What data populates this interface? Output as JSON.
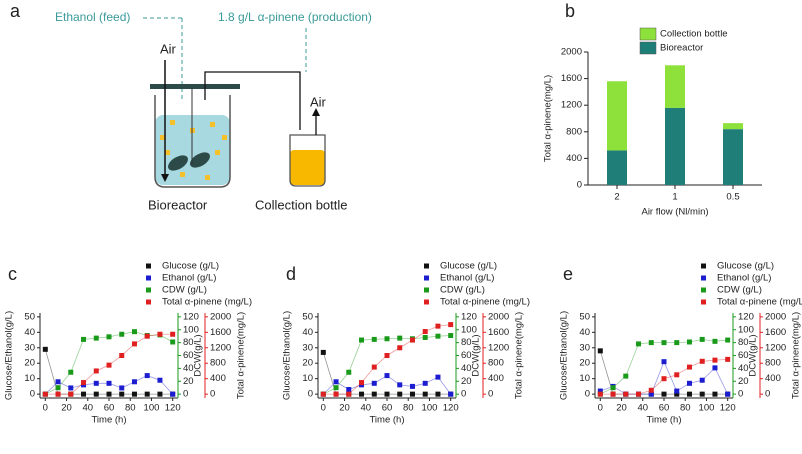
{
  "diagram": {
    "panel": "a",
    "feed_label": "Ethanol (feed)",
    "production_label": "1.8 g/L α-pinene (production)",
    "air_in_label": "Air",
    "air_out_label": "Air",
    "bioreactor_label": "Bioreactor",
    "collection_label": "Collection bottle"
  },
  "chart_data": [
    {
      "panel": "b",
      "type": "bar",
      "stacked": true,
      "categories": [
        "2",
        "1",
        "0.5"
      ],
      "xlabel": "Air flow (Nl/min)",
      "ylabel": "Total α-pinene(mg/L)",
      "series": [
        {
          "name": "Bioreactor",
          "color": "#1f7f78",
          "values": [
            520,
            1160,
            840
          ]
        },
        {
          "name": "Collection bottle",
          "color": "#8ee03a",
          "values": [
            1040,
            640,
            90
          ]
        }
      ],
      "ylim": [
        0,
        2000
      ],
      "yticks": [
        0,
        400,
        800,
        1200,
        1600,
        2000
      ],
      "legend": "upper right"
    },
    {
      "panel": "c",
      "type": "line",
      "x": [
        0,
        12,
        24,
        36,
        48,
        60,
        72,
        84,
        96,
        108,
        120
      ],
      "xlabel": "Time (h)",
      "ylabel": "Glucose/Ethanol(g/L)",
      "y2label": "DCW(g/L)",
      "y3label": "Total α-pinene(mg/L)",
      "xlim": [
        -5,
        125
      ],
      "xticks": [
        0,
        20,
        40,
        60,
        80,
        100,
        120
      ],
      "ylim": [
        -2.5,
        52.5
      ],
      "yticks": [
        0,
        10,
        20,
        30,
        40,
        50
      ],
      "y2lim": [
        -6,
        126
      ],
      "y2ticks": [
        0,
        20,
        40,
        60,
        80,
        100,
        120
      ],
      "y3lim": [
        -100,
        2100
      ],
      "y3ticks": [
        0,
        400,
        800,
        1200,
        1600,
        2000
      ],
      "series": [
        {
          "name": "Glucose (g/L)",
          "color": "#111111",
          "axis": "y",
          "values": [
            29,
            0,
            0,
            0,
            0,
            0,
            0,
            0,
            0,
            0,
            0
          ]
        },
        {
          "name": "Ethanol (g/L)",
          "color": "#1c1cd0",
          "axis": "y",
          "values": [
            0,
            8,
            4,
            6,
            7,
            7,
            4,
            8,
            12,
            9,
            0
          ]
        },
        {
          "name": "CDW (g/L)",
          "color": "#1a9a1a",
          "axis": "y2",
          "values": [
            0,
            10,
            34,
            85,
            87,
            89,
            93,
            97,
            91,
            92,
            81
          ]
        },
        {
          "name": "Total α-pinene (mg/L)",
          "color": "#e02020",
          "axis": "y3",
          "values": [
            0,
            0,
            0,
            300,
            600,
            750,
            1000,
            1300,
            1500,
            1550,
            1550
          ]
        }
      ],
      "legend": "upper center"
    },
    {
      "panel": "d",
      "type": "line",
      "x": [
        0,
        12,
        24,
        36,
        48,
        60,
        72,
        84,
        96,
        108,
        120
      ],
      "xlabel": "Time (h)",
      "ylabel": "Glucose/Ethanol(g/L)",
      "y2label": "DCW(g/L)",
      "y3label": "Total α-pinene(mg/L)",
      "xlim": [
        -5,
        125
      ],
      "xticks": [
        0,
        20,
        40,
        60,
        80,
        100,
        120
      ],
      "ylim": [
        -2.5,
        52.5
      ],
      "yticks": [
        0,
        10,
        20,
        30,
        40,
        50
      ],
      "y2lim": [
        -6,
        126
      ],
      "y2ticks": [
        0,
        20,
        40,
        60,
        80,
        100,
        120
      ],
      "y3lim": [
        -100,
        2100
      ],
      "y3ticks": [
        0,
        400,
        800,
        1200,
        1600,
        2000
      ],
      "series": [
        {
          "name": "Glucose (g/L)",
          "color": "#111111",
          "axis": "y",
          "values": [
            27,
            0,
            0,
            0,
            0,
            0,
            0,
            0,
            0,
            0,
            0
          ]
        },
        {
          "name": "Ethanol (g/L)",
          "color": "#1c1cd0",
          "axis": "y",
          "values": [
            0,
            8,
            3,
            6,
            7,
            12,
            6,
            5,
            7,
            11,
            0
          ]
        },
        {
          "name": "CDW (g/L)",
          "color": "#1a9a1a",
          "axis": "y2",
          "values": [
            0,
            10,
            34,
            84,
            85,
            86,
            87,
            86,
            88,
            90,
            91
          ]
        },
        {
          "name": "Total α-pinene (mg/L)",
          "color": "#e02020",
          "axis": "y3",
          "values": [
            0,
            0,
            0,
            300,
            700,
            1000,
            1200,
            1400,
            1620,
            1760,
            1800
          ]
        }
      ],
      "legend": "upper center"
    },
    {
      "panel": "e",
      "type": "line",
      "x": [
        0,
        12,
        24,
        36,
        48,
        60,
        72,
        84,
        96,
        108,
        120
      ],
      "xlabel": "Time (h)",
      "ylabel": "Glucose/Ethanol(g/L)",
      "y2label": "DCW(g/L)",
      "y3label": "Total α-pinene(mg/L)",
      "xlim": [
        -5,
        125
      ],
      "xticks": [
        0,
        20,
        40,
        60,
        80,
        100,
        120
      ],
      "ylim": [
        -2.5,
        52.5
      ],
      "yticks": [
        0,
        10,
        20,
        30,
        40,
        50
      ],
      "y2lim": [
        -6,
        126
      ],
      "y2ticks": [
        0,
        20,
        40,
        60,
        80,
        100,
        120
      ],
      "y3lim": [
        -100,
        2100
      ],
      "y3ticks": [
        0,
        400,
        800,
        1200,
        1600,
        2000
      ],
      "series": [
        {
          "name": "Glucose (g/L)",
          "color": "#111111",
          "axis": "y",
          "values": [
            28,
            0,
            0,
            0,
            0,
            0,
            0,
            0,
            0,
            0,
            0
          ]
        },
        {
          "name": "Ethanol (g/L)",
          "color": "#1c1cd0",
          "axis": "y",
          "values": [
            2,
            5,
            0,
            0,
            0,
            21,
            2,
            7,
            9,
            17,
            0
          ]
        },
        {
          "name": "CDW (g/L)",
          "color": "#1a9a1a",
          "axis": "y2",
          "values": [
            0,
            10,
            28,
            78,
            80,
            80,
            80,
            81,
            85,
            82,
            84
          ]
        },
        {
          "name": "Total α-pinene (mg/L)",
          "color": "#e02020",
          "axis": "y3",
          "values": [
            0,
            0,
            0,
            0,
            100,
            400,
            500,
            700,
            850,
            880,
            900
          ]
        }
      ],
      "legend": "upper center"
    }
  ]
}
